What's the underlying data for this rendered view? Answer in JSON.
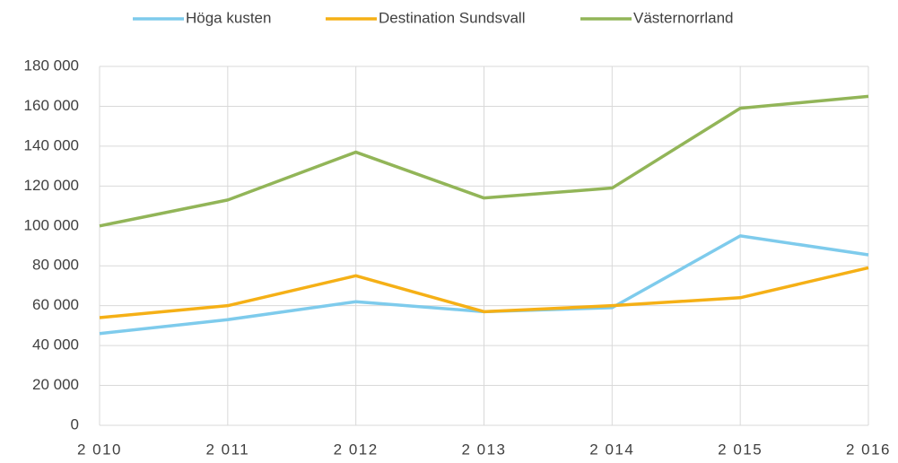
{
  "chart_data": {
    "type": "line",
    "categories": [
      "2 010",
      "2 011",
      "2 012",
      "2 013",
      "2 014",
      "2 015",
      "2 016"
    ],
    "series": [
      {
        "name": "Höga kusten",
        "color": "#7ecbec",
        "values": [
          46000,
          53000,
          62000,
          57000,
          59000,
          95000,
          85500
        ]
      },
      {
        "name": "Destination Sundsvall",
        "color": "#f5b016",
        "values": [
          54000,
          60000,
          75000,
          57000,
          60000,
          64000,
          79000
        ]
      },
      {
        "name": "Västernorrland",
        "color": "#92b558",
        "values": [
          100000,
          113000,
          137000,
          114000,
          119000,
          159000,
          165000
        ]
      }
    ],
    "ylim": [
      0,
      180000
    ],
    "yticks": [
      0,
      {
        "value": 20000,
        "label": "20 000"
      },
      {
        "value": 40000,
        "label": "40 000"
      },
      {
        "value": 60000,
        "label": "60 000"
      },
      {
        "value": 80000,
        "label": "80 000"
      },
      {
        "value": 100000,
        "label": "100 000"
      },
      {
        "value": 120000,
        "label": "120 000"
      },
      {
        "value": 140000,
        "label": "140 000"
      },
      {
        "value": 160000,
        "label": "160 000"
      },
      {
        "value": 180000,
        "label": "180 000"
      }
    ],
    "grid": true,
    "legend": "top"
  }
}
